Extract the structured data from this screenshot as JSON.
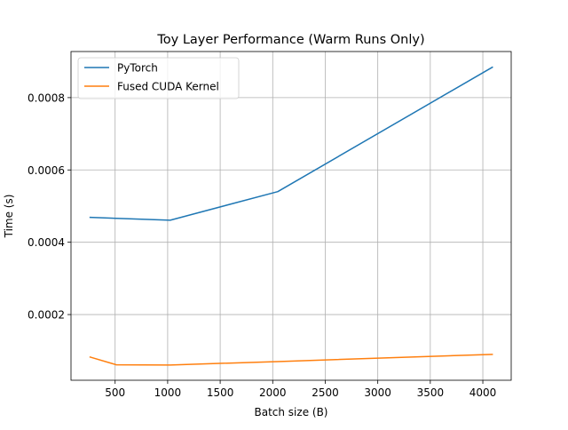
{
  "chart_data": {
    "type": "line",
    "title": "Toy Layer Performance (Warm Runs Only)",
    "xlabel": "Batch size (B)",
    "ylabel": "Time (s)",
    "xlim": [
      80,
      4270
    ],
    "ylim": [
      1.83e-05,
      0.0009275
    ],
    "xticks": [
      500,
      1000,
      1500,
      2000,
      2500,
      3000,
      3500,
      4000
    ],
    "xtick_labels": [
      "500",
      "1000",
      "1500",
      "2000",
      "2500",
      "3000",
      "3500",
      "4000"
    ],
    "yticks": [
      0.0002,
      0.0004,
      0.0006,
      0.0008
    ],
    "ytick_labels": [
      "0.0002",
      "0.0004",
      "0.0006",
      "0.0008"
    ],
    "grid": true,
    "legend_position": "upper-left",
    "series": [
      {
        "name": "PyTorch",
        "color": "#1f77b4",
        "x": [
          256,
          512,
          1024,
          2048,
          4096
        ],
        "y": [
          0.000469,
          0.000466,
          0.000461,
          0.00054,
          0.000885
        ]
      },
      {
        "name": "Fused CUDA Kernel",
        "color": "#ff7f0e",
        "x": [
          256,
          512,
          1024,
          2048,
          4096
        ],
        "y": [
          8.3e-05,
          6.1e-05,
          6.05e-05,
          7e-05,
          9e-05
        ]
      }
    ]
  }
}
